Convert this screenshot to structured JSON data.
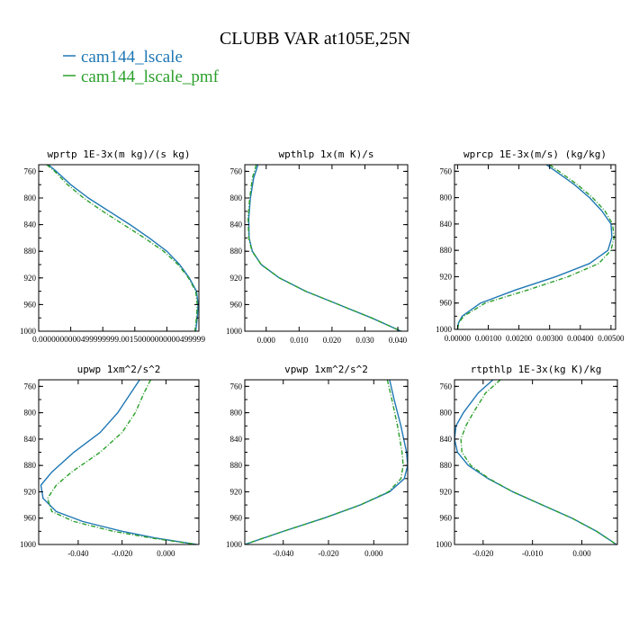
{
  "figure": {
    "title": "CLUBB VAR at105E,25N",
    "legend": [
      {
        "label": "cam144_lscale",
        "color": "#1f77b4"
      },
      {
        "label": "cam144_lscale_pmf",
        "color": "#2ca02c"
      }
    ]
  },
  "chart_data": [
    {
      "type": "line",
      "title": "wprtp  1E-3x(m kg)/(s kg)",
      "xlim": [
        0.0,
        1.0
      ],
      "ylim": [
        1000,
        750
      ],
      "y_ticks": [
        760,
        800,
        840,
        880,
        920,
        960,
        1000
      ],
      "x_ticks": [],
      "x_tick_label_text": "0.0000000000499999999.00150000000000499999",
      "y": [
        750,
        760,
        780,
        800,
        820,
        840,
        860,
        880,
        900,
        920,
        940,
        960,
        980,
        1000
      ],
      "series": [
        {
          "name": "cam144_lscale",
          "color": "#1f77b4",
          "dashed": false,
          "x": [
            0.06,
            0.11,
            0.2,
            0.31,
            0.44,
            0.57,
            0.69,
            0.8,
            0.88,
            0.94,
            0.985,
            0.995,
            0.99,
            0.98
          ]
        },
        {
          "name": "cam144_lscale_pmf",
          "color": "#2ca02c",
          "dashed": true,
          "x": [
            0.05,
            0.1,
            0.18,
            0.28,
            0.4,
            0.53,
            0.66,
            0.78,
            0.87,
            0.935,
            0.98,
            0.99,
            0.985,
            0.975
          ]
        }
      ]
    },
    {
      "type": "line",
      "title": "wpthlp  1x(m K)/s",
      "xlim": [
        -0.0065,
        0.043
      ],
      "ylim": [
        1000,
        750
      ],
      "y_ticks": [
        760,
        800,
        840,
        880,
        920,
        960,
        1000
      ],
      "x_ticks": [
        0.0,
        0.01,
        0.02,
        0.03,
        0.04
      ],
      "x_tick_labels": [
        "0.000",
        "0.010",
        "0.020",
        "0.030",
        "0.040"
      ],
      "y": [
        750,
        770,
        800,
        830,
        860,
        880,
        900,
        920,
        940,
        960,
        980,
        1000
      ],
      "series": [
        {
          "name": "cam144_lscale",
          "color": "#1f77b4",
          "dashed": false,
          "x": [
            -0.0025,
            -0.0038,
            -0.0048,
            -0.0053,
            -0.0052,
            -0.0042,
            -0.0015,
            0.004,
            0.012,
            0.022,
            0.032,
            0.041
          ]
        },
        {
          "name": "cam144_lscale_pmf",
          "color": "#2ca02c",
          "dashed": true,
          "x": [
            -0.003,
            -0.0042,
            -0.005,
            -0.0055,
            -0.0053,
            -0.0043,
            -0.0015,
            0.004,
            0.012,
            0.022,
            0.032,
            0.041
          ]
        }
      ]
    },
    {
      "type": "line",
      "title": "wprcp  1E-3x(m/s) (kg/kg)",
      "xlim": [
        -0.0001,
        0.00515
      ],
      "ylim": [
        1000,
        750
      ],
      "y_ticks": [
        760,
        800,
        840,
        880,
        920,
        960,
        1000
      ],
      "x_ticks": [
        0.0,
        0.001,
        0.002,
        0.003,
        0.004,
        0.005
      ],
      "x_tick_labels": [
        "0.00000",
        "0.00100",
        "0.00200",
        "0.00300",
        "0.00400",
        "0.00500"
      ],
      "y": [
        750,
        760,
        780,
        800,
        820,
        840,
        860,
        880,
        900,
        920,
        940,
        960,
        980,
        990,
        1000
      ],
      "series": [
        {
          "name": "cam144_lscale",
          "color": "#1f77b4",
          "dashed": false,
          "x": [
            0.0029,
            0.0032,
            0.0038,
            0.0043,
            0.0047,
            0.005,
            0.00503,
            0.0049,
            0.0043,
            0.0032,
            0.0019,
            0.00075,
            0.00015,
            3e-05,
            0.0
          ]
        },
        {
          "name": "cam144_lscale_pmf",
          "color": "#2ca02c",
          "dashed": true,
          "x": [
            0.003,
            0.0033,
            0.0039,
            0.0044,
            0.0048,
            0.00505,
            0.0051,
            0.005,
            0.0046,
            0.0036,
            0.0023,
            0.0009,
            0.0002,
            4e-05,
            0.0
          ]
        }
      ]
    },
    {
      "type": "line",
      "title": "upwp  1xm^2/s^2",
      "xlim": [
        -0.058,
        0.015
      ],
      "ylim": [
        1000,
        750
      ],
      "y_ticks": [
        760,
        800,
        840,
        880,
        920,
        960,
        1000
      ],
      "x_ticks": [
        -0.04,
        -0.02,
        0.0
      ],
      "x_tick_labels": [
        "-0.040",
        "-0.020",
        "0.000"
      ],
      "y": [
        750,
        770,
        800,
        830,
        860,
        890,
        910,
        930,
        950,
        965,
        980,
        990,
        1000
      ],
      "series": [
        {
          "name": "cam144_lscale",
          "color": "#1f77b4",
          "dashed": false,
          "x": [
            -0.012,
            -0.016,
            -0.022,
            -0.03,
            -0.042,
            -0.052,
            -0.057,
            -0.056,
            -0.05,
            -0.038,
            -0.02,
            -0.005,
            0.014
          ]
        },
        {
          "name": "cam144_lscale_pmf",
          "color": "#2ca02c",
          "dashed": true,
          "x": [
            -0.007,
            -0.01,
            -0.014,
            -0.02,
            -0.03,
            -0.043,
            -0.05,
            -0.054,
            -0.052,
            -0.042,
            -0.024,
            -0.007,
            0.014
          ]
        }
      ]
    },
    {
      "type": "line",
      "title": "vpwp  1xm^2/s^2",
      "xlim": [
        -0.057,
        0.015
      ],
      "ylim": [
        1000,
        750
      ],
      "y_ticks": [
        760,
        800,
        840,
        880,
        920,
        960,
        1000
      ],
      "x_ticks": [
        -0.04,
        -0.02,
        0.0
      ],
      "x_tick_labels": [
        "-0.040",
        "-0.020",
        "0.000"
      ],
      "y": [
        750,
        780,
        820,
        860,
        880,
        900,
        920,
        940,
        960,
        980,
        1000
      ],
      "series": [
        {
          "name": "cam144_lscale",
          "color": "#1f77b4",
          "dashed": false,
          "x": [
            0.007,
            0.009,
            0.012,
            0.0145,
            0.015,
            0.0135,
            0.007,
            -0.006,
            -0.022,
            -0.04,
            -0.057
          ]
        },
        {
          "name": "cam144_lscale_pmf",
          "color": "#2ca02c",
          "dashed": true,
          "x": [
            0.006,
            0.008,
            0.0105,
            0.0125,
            0.013,
            0.012,
            0.0065,
            -0.006,
            -0.022,
            -0.04,
            -0.057
          ]
        }
      ]
    },
    {
      "type": "line",
      "title": "rtpthlp  1E-3x(kg K)/kg",
      "xlim": [
        -0.0258,
        0.0072
      ],
      "ylim": [
        1000,
        750
      ],
      "y_ticks": [
        760,
        800,
        840,
        880,
        920,
        960,
        1000
      ],
      "x_ticks": [
        -0.02,
        -0.01,
        0.0
      ],
      "x_tick_labels": [
        "-0.020",
        "-0.010",
        "0.000"
      ],
      "y": [
        750,
        770,
        800,
        820,
        840,
        860,
        880,
        900,
        920,
        940,
        960,
        980,
        995,
        1000
      ],
      "series": [
        {
          "name": "cam144_lscale",
          "color": "#1f77b4",
          "dashed": false,
          "x": [
            -0.018,
            -0.021,
            -0.024,
            -0.0255,
            -0.0258,
            -0.0252,
            -0.023,
            -0.019,
            -0.014,
            -0.008,
            -0.002,
            0.003,
            0.006,
            0.007
          ]
        },
        {
          "name": "cam144_lscale_pmf",
          "color": "#2ca02c",
          "dashed": true,
          "x": [
            -0.0165,
            -0.0195,
            -0.022,
            -0.0235,
            -0.0245,
            -0.0243,
            -0.0225,
            -0.0188,
            -0.014,
            -0.008,
            -0.002,
            0.003,
            0.006,
            0.007
          ]
        }
      ]
    }
  ]
}
